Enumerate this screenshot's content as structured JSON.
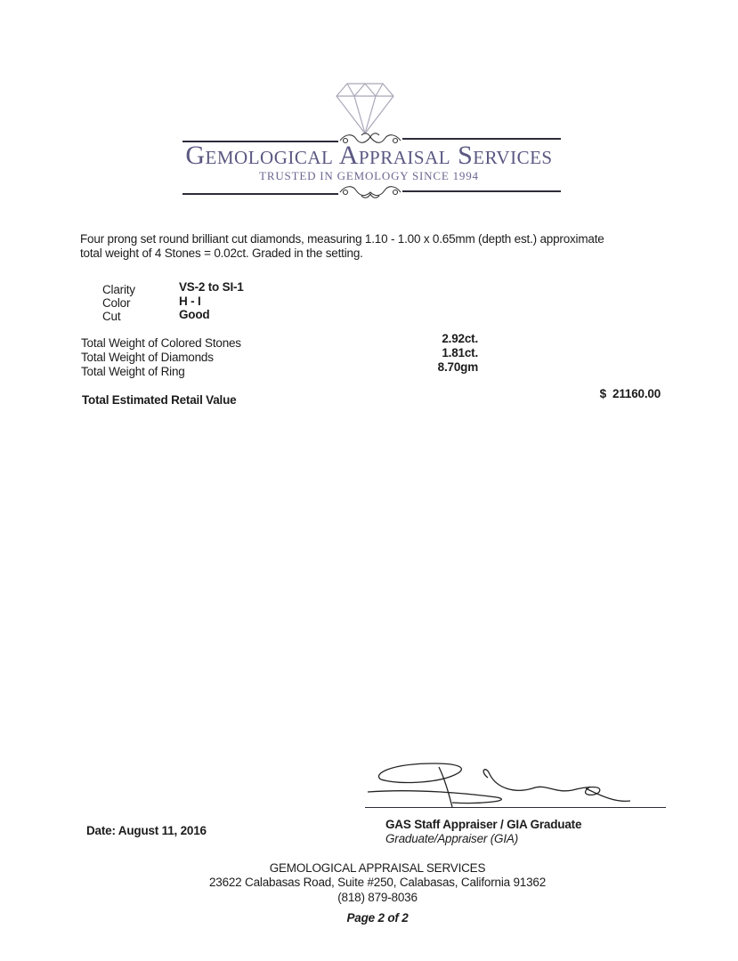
{
  "logo": {
    "name": "Gemological Appraisal Services",
    "tagline": "Trusted in Gemology Since 1994",
    "color": "#5b5882",
    "icon": "diamond-icon"
  },
  "description": {
    "line1": "Four prong set round brilliant cut diamonds, measuring 1.10 - 1.00 x 0.65mm (depth est.) approximate",
    "line2": "total weight of 4 Stones = 0.02ct. Graded in the setting."
  },
  "grading": [
    {
      "label": "Clarity",
      "value": "VS-2 to SI-1"
    },
    {
      "label": "Color",
      "value": "H - I"
    },
    {
      "label": "Cut",
      "value": "Good"
    }
  ],
  "weights": [
    {
      "label": "Total Weight of Colored Stones",
      "value": "2.92ct."
    },
    {
      "label": "Total Weight of Diamonds",
      "value": "1.81ct."
    },
    {
      "label": "Total Weight of Ring",
      "value": "8.70gm"
    }
  ],
  "total": {
    "label": "Total Estimated Retail Value",
    "value": "$  21160.00"
  },
  "date": "Date: August 11, 2016",
  "signer": {
    "title": "GAS Staff Appraiser / GIA Graduate",
    "subtitle": "Graduate/Appraiser (GIA)"
  },
  "footer": {
    "company": "GEMOLOGICAL APPRAISAL SERVICES",
    "address": "23622 Calabasas Road, Suite #250, Calabasas, California 91362",
    "phone": "(818) 879-8036",
    "page": "Page 2 of 2"
  }
}
